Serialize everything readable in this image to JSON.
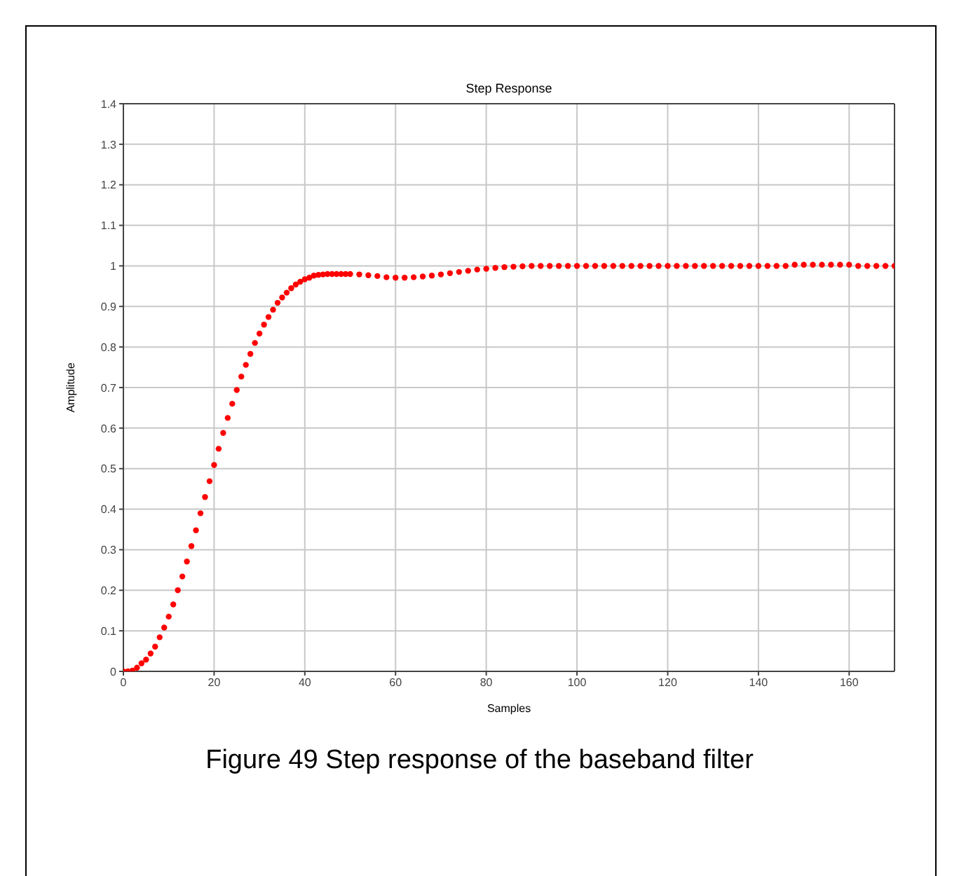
{
  "chart_data": {
    "type": "scatter",
    "title": "Step Response",
    "xlabel": "Samples",
    "ylabel": "Amplitude",
    "x": [
      0,
      1,
      2,
      3,
      4,
      5,
      6,
      7,
      8,
      9,
      10,
      11,
      12,
      13,
      14,
      15,
      16,
      17,
      18,
      19,
      20,
      21,
      22,
      23,
      24,
      25,
      26,
      27,
      28,
      29,
      30,
      31,
      32,
      33,
      34,
      35,
      36,
      37,
      38,
      39,
      40,
      41,
      42,
      43,
      44,
      45,
      46,
      47,
      48,
      49,
      50,
      52,
      54,
      56,
      58,
      60,
      62,
      64,
      66,
      68,
      70,
      72,
      74,
      76,
      78,
      80,
      82,
      84,
      86,
      88,
      90,
      92,
      94,
      96,
      98,
      100,
      102,
      104,
      106,
      108,
      110,
      112,
      114,
      116,
      118,
      120,
      122,
      124,
      126,
      128,
      130,
      132,
      134,
      136,
      138,
      140,
      142,
      144,
      146,
      148,
      150,
      152,
      154,
      156,
      158,
      160,
      162,
      164,
      166,
      168,
      170
    ],
    "series": [
      {
        "color": "#ff0000",
        "values": [
          0,
          0,
          0.002,
          0.009,
          0.02,
          0.029,
          0.044,
          0.061,
          0.084,
          0.108,
          0.135,
          0.165,
          0.2,
          0.234,
          0.271,
          0.309,
          0.348,
          0.39,
          0.43,
          0.469,
          0.509,
          0.549,
          0.588,
          0.625,
          0.66,
          0.694,
          0.727,
          0.756,
          0.783,
          0.81,
          0.833,
          0.855,
          0.874,
          0.892,
          0.909,
          0.922,
          0.934,
          0.945,
          0.954,
          0.961,
          0.967,
          0.971,
          0.976,
          0.978,
          0.979,
          0.98,
          0.98,
          0.98,
          0.98,
          0.98,
          0.98,
          0.979,
          0.977,
          0.975,
          0.972,
          0.971,
          0.971,
          0.972,
          0.974,
          0.976,
          0.979,
          0.982,
          0.985,
          0.988,
          0.991,
          0.993,
          0.995,
          0.997,
          0.998,
          0.999,
          1,
          1,
          1,
          1,
          1,
          1,
          1,
          1,
          1,
          1,
          1,
          1,
          1,
          1,
          1,
          1,
          1,
          1,
          1,
          1,
          1,
          1,
          1,
          1,
          1,
          1,
          1,
          1,
          1,
          1.003,
          1.003,
          1.003,
          1.003,
          1.003,
          1.003,
          1.003,
          1,
          1,
          1,
          1,
          1
        ]
      }
    ],
    "xlim": [
      0,
      170
    ],
    "xticks": [
      0,
      20,
      40,
      60,
      80,
      100,
      120,
      140,
      160
    ],
    "ylim": [
      0,
      1.4
    ],
    "yticks": [
      0,
      0.1,
      0.2,
      0.3,
      0.4,
      0.5,
      0.6,
      0.7,
      0.8,
      0.9,
      1,
      1.1,
      1.2,
      1.3,
      1.4
    ],
    "grid": true,
    "marker": "circle",
    "annotations": [
      "Figure 49 Step response of the baseband filter"
    ]
  }
}
